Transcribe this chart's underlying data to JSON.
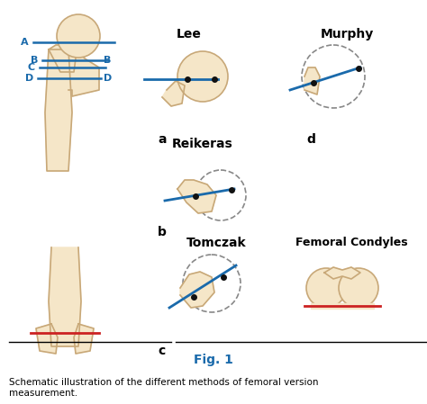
{
  "title": "Fig. 1",
  "caption": "Schematic illustration of the different methods of femoral version\nmeasurement.",
  "bone_fill": "#f5e6c8",
  "bone_edge": "#c8a878",
  "blue_line": "#1a6aab",
  "red_line": "#cc2222",
  "dashed_circle": "#888888",
  "dot_color": "#111111",
  "label_A": "A",
  "label_B": "B",
  "label_C": "C",
  "label_D": "D",
  "label_a": "a",
  "label_b": "b",
  "label_c": "c",
  "label_d": "d",
  "section_Lee": "Lee",
  "section_Murphy": "Murphy",
  "section_Reikeras": "Reikeras",
  "section_Tomczak": "Tomczak",
  "section_FC": "Femoral Condyles",
  "fig_color": "#1a6aab",
  "background": "#ffffff"
}
